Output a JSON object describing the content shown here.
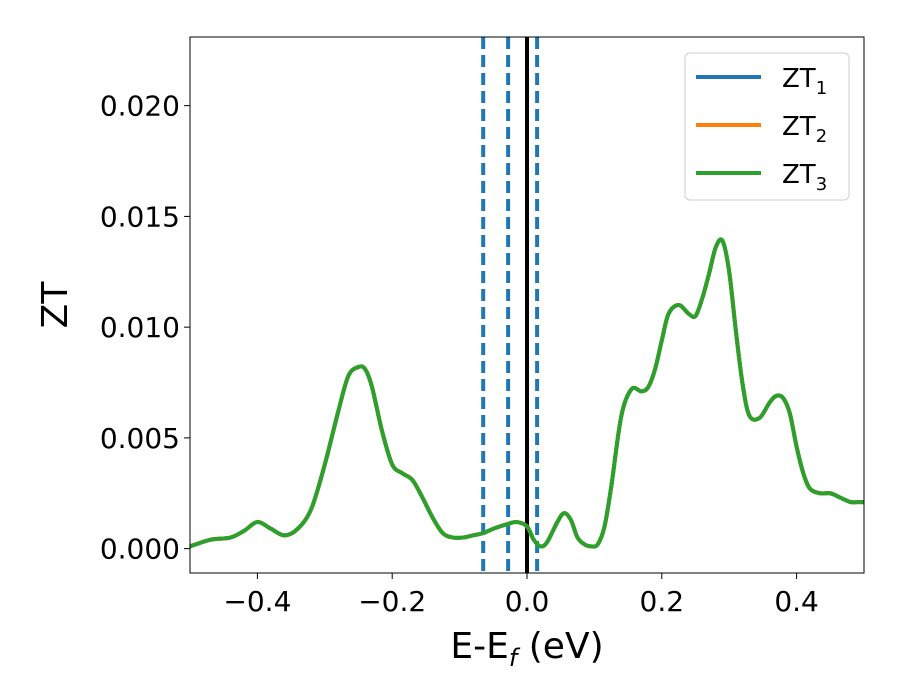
{
  "chart_data": {
    "type": "line",
    "xlabel_main": "E-E",
    "xlabel_sub": "f",
    "xlabel_unit": " (eV)",
    "ylabel": "ZT",
    "xlim": [
      -0.5,
      0.5
    ],
    "ylim": [
      -0.0011,
      0.0231
    ],
    "x_ticks": [
      -0.4,
      -0.2,
      0.0,
      0.2,
      0.4
    ],
    "x_tick_labels": [
      "−0.4",
      "−0.2",
      "0.0",
      "0.2",
      "0.4"
    ],
    "y_ticks": [
      0.0,
      0.005,
      0.01,
      0.015,
      0.02
    ],
    "y_tick_labels": [
      "0.000",
      "0.005",
      "0.010",
      "0.015",
      "0.020"
    ],
    "grid": false,
    "legend_position": "top-right",
    "vertical_lines": [
      {
        "x": 0.0,
        "style": "solid",
        "color": "#000000"
      },
      {
        "x": -0.065,
        "style": "dashed",
        "color": "#1f77b4"
      },
      {
        "x": -0.028,
        "style": "dashed",
        "color": "#1f77b4"
      },
      {
        "x": 0.015,
        "style": "dashed",
        "color": "#1f77b4"
      }
    ],
    "series": [
      {
        "name": "ZT",
        "name_sub": "1",
        "color": "#1f77b4",
        "x": [
          -0.5,
          -0.47,
          -0.44,
          -0.42,
          -0.4,
          -0.38,
          -0.36,
          -0.34,
          -0.32,
          -0.3,
          -0.28,
          -0.265,
          -0.25,
          -0.24,
          -0.23,
          -0.215,
          -0.2,
          -0.185,
          -0.17,
          -0.155,
          -0.14,
          -0.125,
          -0.11,
          -0.095,
          -0.08,
          -0.065,
          -0.05,
          -0.03,
          -0.015,
          0.0,
          0.01,
          0.02,
          0.03,
          0.045,
          0.055,
          0.065,
          0.075,
          0.085,
          0.095,
          0.105,
          0.115,
          0.125,
          0.14,
          0.155,
          0.17,
          0.18,
          0.19,
          0.2,
          0.21,
          0.225,
          0.24,
          0.25,
          0.26,
          0.27,
          0.28,
          0.29,
          0.3,
          0.31,
          0.32,
          0.33,
          0.345,
          0.36,
          0.37,
          0.38,
          0.39,
          0.4,
          0.41,
          0.42,
          0.435,
          0.45,
          0.465,
          0.48,
          0.49,
          0.5
        ],
        "y": [
          0.0001,
          0.0004,
          0.0005,
          0.0008,
          0.0012,
          0.0009,
          0.0006,
          0.0009,
          0.0018,
          0.0038,
          0.0062,
          0.0078,
          0.0082,
          0.0081,
          0.0073,
          0.0053,
          0.0038,
          0.0034,
          0.0031,
          0.0023,
          0.0014,
          0.0007,
          0.0005,
          0.0005,
          0.0006,
          0.0007,
          0.0009,
          0.0011,
          0.0012,
          0.001,
          0.0004,
          0.0001,
          0.0003,
          0.0012,
          0.0016,
          0.0013,
          0.0005,
          0.0002,
          0.0001,
          0.0002,
          0.001,
          0.0028,
          0.006,
          0.0072,
          0.0071,
          0.0073,
          0.0081,
          0.0094,
          0.0106,
          0.011,
          0.0106,
          0.0105,
          0.0113,
          0.0124,
          0.0136,
          0.0139,
          0.0125,
          0.0098,
          0.0074,
          0.006,
          0.0059,
          0.0066,
          0.0069,
          0.0068,
          0.0061,
          0.0046,
          0.0034,
          0.0027,
          0.0025,
          0.0025,
          0.0023,
          0.0021,
          0.0021,
          0.0021
        ]
      },
      {
        "name": "ZT",
        "name_sub": "2",
        "color": "#ff7f0e",
        "x": [
          -0.5,
          -0.47,
          -0.44,
          -0.42,
          -0.4,
          -0.38,
          -0.36,
          -0.34,
          -0.32,
          -0.3,
          -0.28,
          -0.265,
          -0.25,
          -0.24,
          -0.23,
          -0.215,
          -0.2,
          -0.185,
          -0.17,
          -0.155,
          -0.14,
          -0.125,
          -0.11,
          -0.095,
          -0.08,
          -0.065,
          -0.05,
          -0.03,
          -0.015,
          0.0,
          0.01,
          0.02,
          0.03,
          0.045,
          0.055,
          0.065,
          0.075,
          0.085,
          0.095,
          0.105,
          0.115,
          0.125,
          0.14,
          0.155,
          0.17,
          0.18,
          0.19,
          0.2,
          0.21,
          0.225,
          0.24,
          0.25,
          0.26,
          0.27,
          0.28,
          0.29,
          0.3,
          0.31,
          0.32,
          0.33,
          0.345,
          0.36,
          0.37,
          0.38,
          0.39,
          0.4,
          0.41,
          0.42,
          0.435,
          0.45,
          0.465,
          0.48,
          0.49,
          0.5
        ],
        "y": [
          0.0001,
          0.0004,
          0.0005,
          0.0008,
          0.0012,
          0.0009,
          0.0006,
          0.0009,
          0.0018,
          0.0038,
          0.0062,
          0.0078,
          0.0082,
          0.0081,
          0.0073,
          0.0053,
          0.0038,
          0.0034,
          0.0031,
          0.0023,
          0.0014,
          0.0007,
          0.0005,
          0.0005,
          0.0006,
          0.0007,
          0.0009,
          0.0011,
          0.0012,
          0.001,
          0.0004,
          0.0001,
          0.0003,
          0.0012,
          0.0016,
          0.0013,
          0.0005,
          0.0002,
          0.0001,
          0.0002,
          0.001,
          0.0028,
          0.006,
          0.0072,
          0.0071,
          0.0073,
          0.0081,
          0.0094,
          0.0106,
          0.011,
          0.0106,
          0.0105,
          0.0113,
          0.0124,
          0.0136,
          0.0139,
          0.0125,
          0.0098,
          0.0074,
          0.006,
          0.0059,
          0.0066,
          0.0069,
          0.0068,
          0.0061,
          0.0046,
          0.0034,
          0.0027,
          0.0025,
          0.0025,
          0.0023,
          0.0021,
          0.0021,
          0.0021
        ]
      },
      {
        "name": "ZT",
        "name_sub": "3",
        "color": "#2ca02c",
        "x": [
          -0.5,
          -0.47,
          -0.44,
          -0.42,
          -0.4,
          -0.38,
          -0.36,
          -0.34,
          -0.32,
          -0.3,
          -0.28,
          -0.265,
          -0.25,
          -0.24,
          -0.23,
          -0.215,
          -0.2,
          -0.185,
          -0.17,
          -0.155,
          -0.14,
          -0.125,
          -0.11,
          -0.095,
          -0.08,
          -0.065,
          -0.05,
          -0.03,
          -0.015,
          0.0,
          0.01,
          0.02,
          0.03,
          0.045,
          0.055,
          0.065,
          0.075,
          0.085,
          0.095,
          0.105,
          0.115,
          0.125,
          0.14,
          0.155,
          0.17,
          0.18,
          0.19,
          0.2,
          0.21,
          0.225,
          0.24,
          0.25,
          0.26,
          0.27,
          0.28,
          0.29,
          0.3,
          0.31,
          0.32,
          0.33,
          0.345,
          0.36,
          0.37,
          0.38,
          0.39,
          0.4,
          0.41,
          0.42,
          0.435,
          0.45,
          0.465,
          0.48,
          0.49,
          0.5
        ],
        "y": [
          0.0001,
          0.0004,
          0.0005,
          0.0008,
          0.0012,
          0.0009,
          0.0006,
          0.0009,
          0.0018,
          0.0038,
          0.0062,
          0.0078,
          0.0082,
          0.0081,
          0.0073,
          0.0053,
          0.0038,
          0.0034,
          0.0031,
          0.0023,
          0.0014,
          0.0007,
          0.0005,
          0.0005,
          0.0006,
          0.0007,
          0.0009,
          0.0011,
          0.0012,
          0.001,
          0.0004,
          0.0001,
          0.0003,
          0.0012,
          0.0016,
          0.0013,
          0.0005,
          0.0002,
          0.0001,
          0.0002,
          0.001,
          0.0028,
          0.006,
          0.0072,
          0.0071,
          0.0073,
          0.0081,
          0.0094,
          0.0106,
          0.011,
          0.0106,
          0.0105,
          0.0113,
          0.0124,
          0.0136,
          0.0139,
          0.0125,
          0.0098,
          0.0074,
          0.006,
          0.0059,
          0.0066,
          0.0069,
          0.0068,
          0.0061,
          0.0046,
          0.0034,
          0.0027,
          0.0025,
          0.0025,
          0.0023,
          0.0021,
          0.0021,
          0.0021
        ]
      }
    ]
  }
}
